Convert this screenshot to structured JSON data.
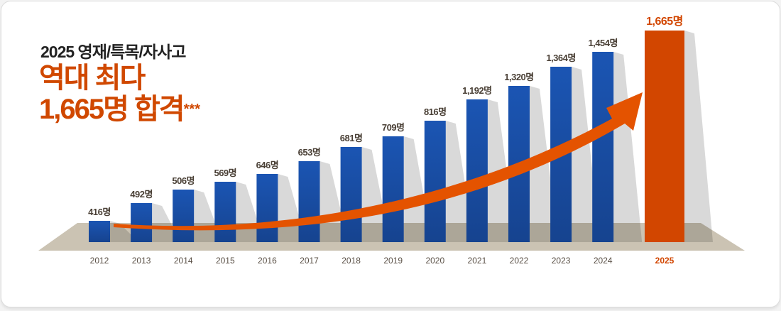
{
  "headline": {
    "subtitle": "2025 영재/특목/자사고",
    "line1": "역대 최다",
    "line2": "1,665명 합격",
    "stars": "***"
  },
  "chart_data": {
    "type": "bar",
    "title": "2025 영재/특목/자사고 역대 최다 1,665명 합격",
    "categories": [
      "2012",
      "2013",
      "2014",
      "2015",
      "2016",
      "2017",
      "2018",
      "2019",
      "2020",
      "2021",
      "2022",
      "2023",
      "2024",
      "2025"
    ],
    "values": [
      416,
      492,
      506,
      569,
      646,
      653,
      681,
      709,
      816,
      1192,
      1320,
      1364,
      1454,
      1665
    ],
    "labels": [
      "416명",
      "492명",
      "506명",
      "569명",
      "646명",
      "653명",
      "681명",
      "709명",
      "816명",
      "1,192명",
      "1,320명",
      "1,364명",
      "1,454명",
      "1,665명"
    ],
    "unit": "명",
    "highlight": "2025",
    "colors": {
      "bar": "#1a4fa6",
      "highlight": "#d24600",
      "arrow": "#e55300",
      "floor": "#cbc3b3",
      "label": "#4a4036",
      "highlight_label": "#d24600"
    }
  }
}
